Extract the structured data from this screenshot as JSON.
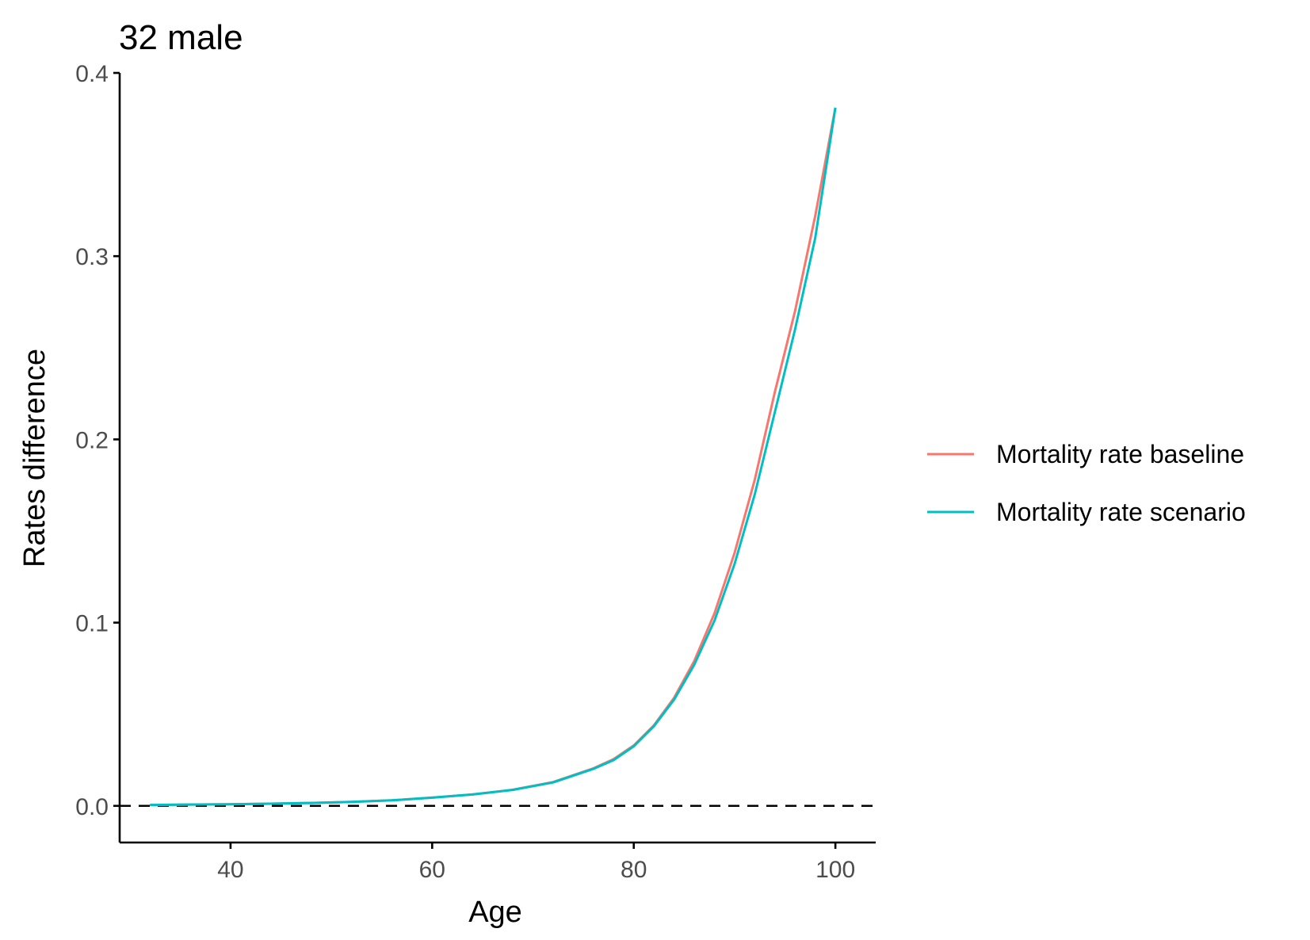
{
  "chart_data": {
    "type": "line",
    "title": "32 male",
    "xlabel": "Age",
    "ylabel": "Rates difference",
    "xlim": [
      29,
      104
    ],
    "ylim": [
      -0.02,
      0.4
    ],
    "x_ticks": [
      40,
      60,
      80,
      100
    ],
    "x_tick_labels": [
      "40",
      "60",
      "80",
      "100"
    ],
    "y_ticks": [
      0.0,
      0.1,
      0.2,
      0.3,
      0.4
    ],
    "y_tick_labels": [
      "0.0",
      "0.1",
      "0.2",
      "0.3",
      "0.4"
    ],
    "grid": false,
    "legend_position": "right",
    "reference_line": {
      "y": 0,
      "style": "dashed",
      "color": "#000000"
    },
    "x": [
      32,
      36,
      40,
      44,
      48,
      52,
      56,
      60,
      64,
      68,
      72,
      76,
      78,
      80,
      82,
      84,
      86,
      88,
      90,
      92,
      94,
      96,
      98,
      100
    ],
    "series": [
      {
        "name": "Mortality rate baseline",
        "color": "#F8766D",
        "values": [
          0.0005,
          0.0007,
          0.0009,
          0.0012,
          0.0016,
          0.0022,
          0.003,
          0.0045,
          0.0062,
          0.0088,
          0.013,
          0.0205,
          0.0255,
          0.033,
          0.044,
          0.059,
          0.079,
          0.105,
          0.138,
          0.178,
          0.226,
          0.27,
          0.322,
          0.381
        ]
      },
      {
        "name": "Mortality rate scenario",
        "color": "#00BFC4",
        "values": [
          0.0005,
          0.0007,
          0.0009,
          0.0012,
          0.0016,
          0.0022,
          0.003,
          0.0045,
          0.0062,
          0.0087,
          0.0128,
          0.0202,
          0.025,
          0.0325,
          0.0435,
          0.058,
          0.077,
          0.101,
          0.132,
          0.17,
          0.215,
          0.26,
          0.31,
          0.381
        ]
      }
    ]
  }
}
